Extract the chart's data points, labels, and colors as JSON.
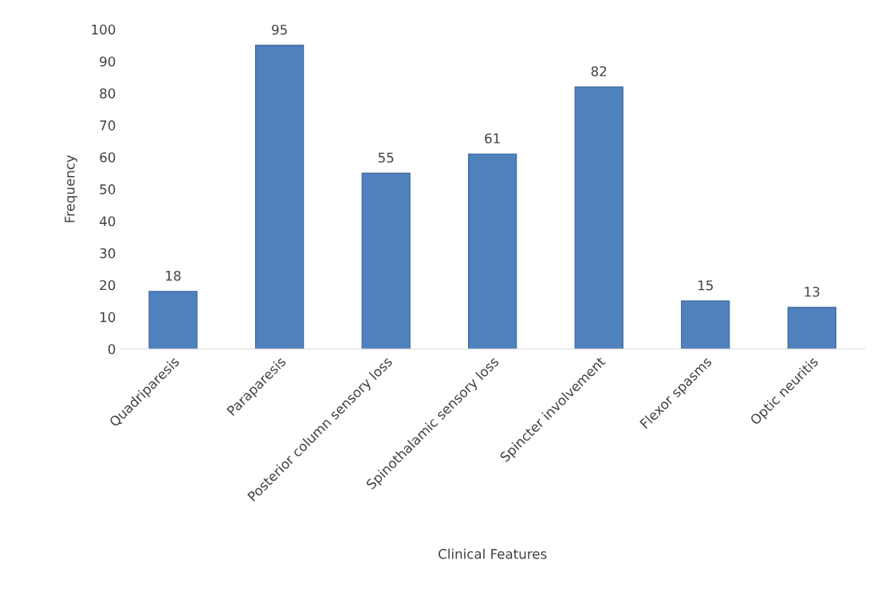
{
  "chart_data": {
    "type": "bar",
    "xlabel": "Clinical Features",
    "ylabel": "Frequency",
    "categories": [
      "Quadriparesis",
      "Paraparesis",
      "Posterior column sensory loss",
      "Spinothalamic sensory loss",
      "Spincter involvement",
      "Flexor spasms",
      "Optic neuritis"
    ],
    "values": [
      18,
      95,
      55,
      61,
      82,
      15,
      13
    ],
    "color": "#4f81bd",
    "ylim": [
      0,
      100
    ],
    "yticks": [
      0,
      10,
      20,
      30,
      40,
      50,
      60,
      70,
      80,
      90,
      100
    ],
    "grid": false,
    "legend": false,
    "data_labels": true
  }
}
